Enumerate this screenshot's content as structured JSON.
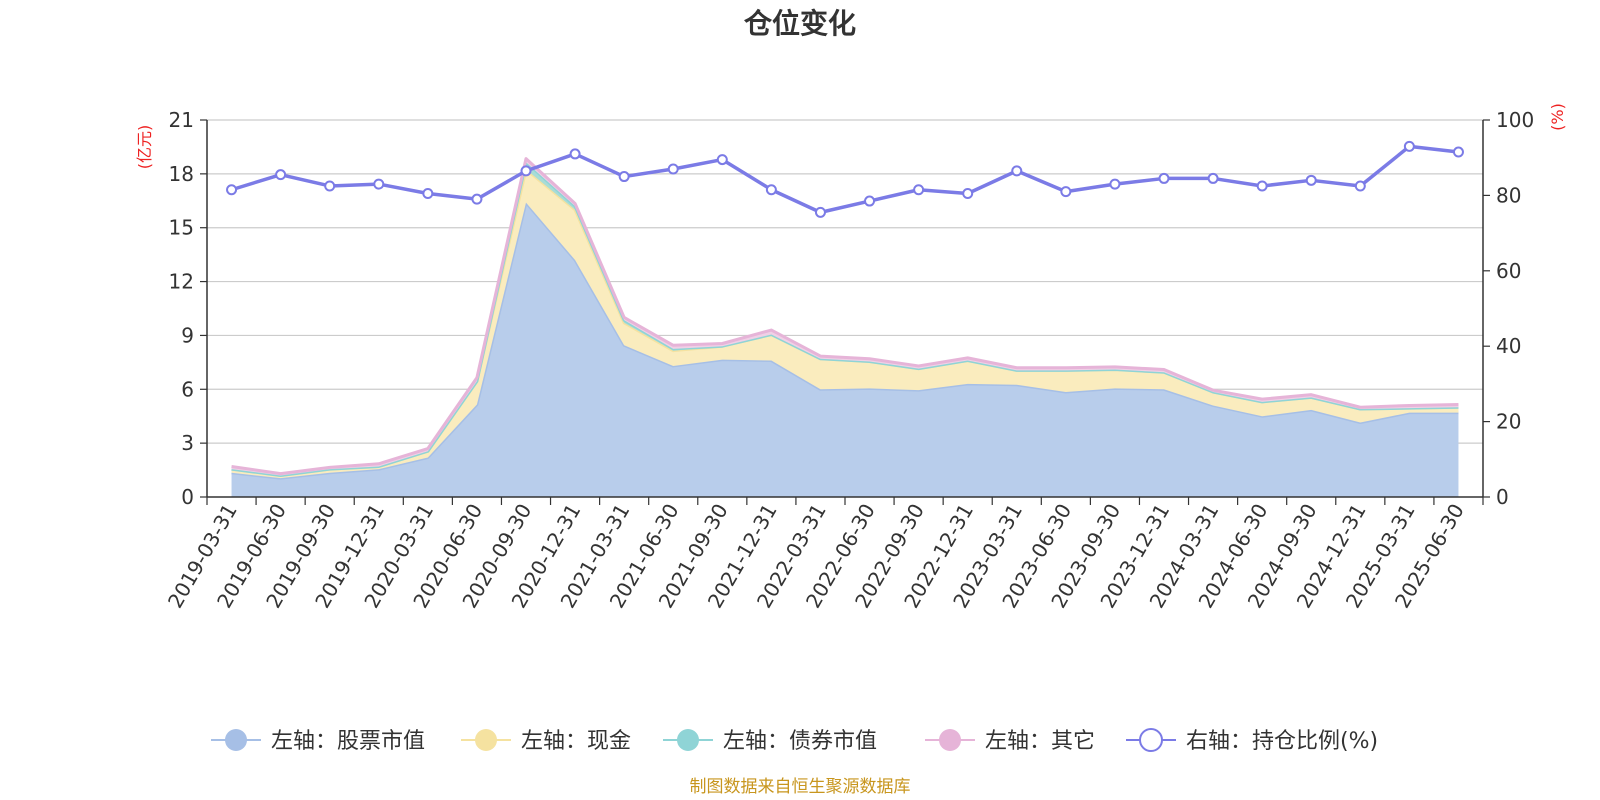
{
  "chart_data": {
    "type": "area",
    "title": "仓位变化",
    "categories": [
      "2019-03-31",
      "2019-06-30",
      "2019-09-30",
      "2019-12-31",
      "2020-03-31",
      "2020-06-30",
      "2020-09-30",
      "2020-12-31",
      "2021-03-31",
      "2021-06-30",
      "2021-09-30",
      "2021-12-31",
      "2022-03-31",
      "2022-06-30",
      "2022-09-30",
      "2022-12-31",
      "2023-03-31",
      "2023-06-30",
      "2023-09-30",
      "2023-12-31",
      "2024-03-31",
      "2024-06-30",
      "2024-09-30",
      "2024-12-31",
      "2025-03-31",
      "2025-06-30"
    ],
    "left_axis": {
      "unit": "(亿元)",
      "ylim": [
        0,
        21
      ],
      "ticks": [
        0,
        3,
        6,
        9,
        12,
        15,
        18,
        21
      ]
    },
    "right_axis": {
      "unit": "(%)",
      "ylim": [
        0,
        100
      ],
      "ticks": [
        0,
        20,
        40,
        60,
        80,
        100
      ]
    },
    "stacked_series": [
      {
        "name": "左轴：股票市值",
        "color": "#a6bfe6",
        "fill": "#b8cdeb",
        "values": [
          1.35,
          1.05,
          1.35,
          1.55,
          2.2,
          5.15,
          16.4,
          13.2,
          8.45,
          7.3,
          7.65,
          7.6,
          6.0,
          6.05,
          5.95,
          6.3,
          6.25,
          5.85,
          6.05,
          6.0,
          5.1,
          4.5,
          4.85,
          4.15,
          4.7,
          4.7
        ]
      },
      {
        "name": "左轴：现金",
        "color": "#f5e2a0",
        "fill": "#faecbe",
        "values": [
          0.2,
          0.15,
          0.2,
          0.15,
          0.35,
          1.3,
          1.85,
          2.8,
          1.25,
          0.85,
          0.75,
          1.45,
          1.7,
          1.5,
          1.2,
          1.3,
          0.8,
          1.2,
          1.05,
          0.95,
          0.75,
          0.8,
          0.7,
          0.75,
          0.25,
          0.3
        ]
      },
      {
        "name": "左轴：债券市值",
        "color": "#8fd4d6",
        "fill": "#a9dcd6",
        "values": [
          0,
          0,
          0,
          0,
          0,
          0,
          0.4,
          0.2,
          0.15,
          0.1,
          0,
          0,
          0,
          0,
          0,
          0,
          0,
          0,
          0,
          0,
          0,
          0,
          0,
          0,
          0,
          0
        ]
      },
      {
        "name": "左轴：其它",
        "color": "#e6b4d8",
        "fill": "#f0d0e6",
        "values": [
          0.15,
          0.1,
          0.1,
          0.15,
          0.15,
          0.2,
          0.2,
          0.15,
          0.15,
          0.2,
          0.15,
          0.25,
          0.15,
          0.15,
          0.15,
          0.15,
          0.15,
          0.15,
          0.15,
          0.15,
          0.1,
          0.15,
          0.15,
          0.1,
          0.15,
          0.15
        ]
      }
    ],
    "line_series": {
      "name": "右轴：持仓比例(%)",
      "color": "#7b7be6",
      "values": [
        81.5,
        85.5,
        82.5,
        83,
        80.5,
        79,
        86.5,
        91,
        85,
        87,
        89.5,
        81.5,
        75.5,
        78.5,
        81.5,
        80.5,
        86.5,
        81,
        83,
        84.5,
        84.5,
        82.5,
        84,
        82.5,
        93,
        91.5
      ]
    },
    "source": "制图数据来自恒生聚源数据库",
    "grid": true,
    "legend_position": "bottom"
  }
}
